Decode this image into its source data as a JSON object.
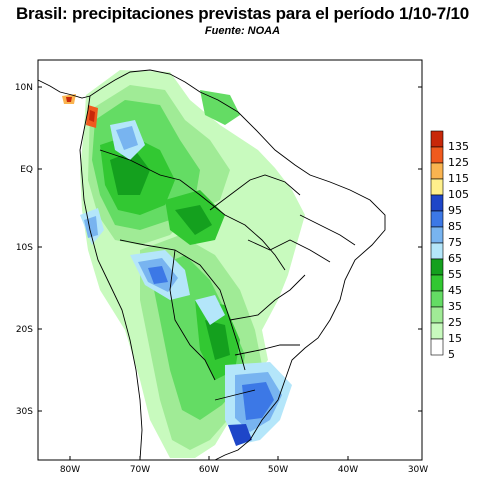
{
  "title": "Brasil: precipitaciones previstas para el período 1/10-7/10",
  "source": "Fuente: NOAA",
  "map": {
    "lat_ticks": [
      "10N",
      "EQ",
      "10S",
      "20S",
      "30S"
    ],
    "lon_ticks": [
      "80W",
      "70W",
      "60W",
      "50W",
      "40W",
      "30W"
    ]
  },
  "legend": {
    "levels": [
      {
        "label": "135",
        "color": "#c8280a"
      },
      {
        "label": "125",
        "color": "#f05a1e"
      },
      {
        "label": "115",
        "color": "#fab450"
      },
      {
        "label": "105",
        "color": "#fff08c"
      },
      {
        "label": "95",
        "color": "#1e46c8"
      },
      {
        "label": "85",
        "color": "#3c78e6"
      },
      {
        "label": "75",
        "color": "#78b4f0"
      },
      {
        "label": "65",
        "color": "#b4e6fa"
      },
      {
        "label": "55",
        "color": "#14a01e"
      },
      {
        "label": "45",
        "color": "#32c832"
      },
      {
        "label": "35",
        "color": "#64dc64"
      },
      {
        "label": "25",
        "color": "#a0eb96"
      },
      {
        "label": "15",
        "color": "#c8fabe"
      },
      {
        "label": "5",
        "color": "#ffffff"
      }
    ]
  }
}
